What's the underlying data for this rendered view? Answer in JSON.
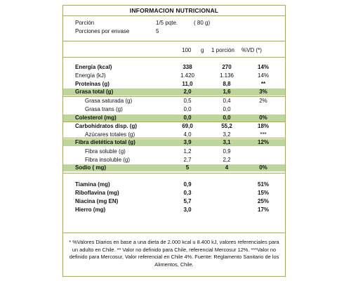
{
  "title": "INFORMACION NUTRICIONAL",
  "serving": {
    "portion_label": "Porción",
    "portion_value": "1/5 pqte.",
    "portion_grams": "(    80   g)",
    "servings_label": "Porciones por envase",
    "servings_value": "5"
  },
  "header": {
    "per100": "100",
    "unit": "g",
    "per_portion": "1 porción",
    "vd": "%VD (*)"
  },
  "rows": [
    {
      "label": "Energía (kcal)",
      "v100": "338",
      "vp": "270",
      "vd": "14%"
    },
    {
      "label": "Energía (kJ)",
      "v100": "1.420",
      "vp": "1.136",
      "vd": "14%"
    },
    {
      "label": "Proteínas (g)",
      "v100": "11,0",
      "vp": "8,8",
      "vd": "**"
    },
    {
      "label": "Grasa total (g)",
      "v100": "2,0",
      "vp": "1,6",
      "vd": "3%"
    },
    {
      "label": "Grasa saturada (g)",
      "v100": "0,5",
      "vp": "0,4",
      "vd": "2%"
    },
    {
      "label": "Grasa trans (g)",
      "v100": "0,0",
      "vp": "0,0",
      "vd": ""
    },
    {
      "label": "Colesterol (mg)",
      "v100": "0,0",
      "vp": "0,0",
      "vd": "0%"
    },
    {
      "label": "Carbohidratos disp. (g)",
      "v100": "69,0",
      "vp": "55,2",
      "vd": "18%"
    },
    {
      "label": "Azúcares totales (g)",
      "v100": "4,0",
      "vp": "3,2",
      "vd": "***"
    },
    {
      "label": "Fibra dietética total (g)",
      "v100": "3,9",
      "vp": "3,1",
      "vd": "12%"
    },
    {
      "label": "Fibra soluble (g)",
      "v100": "1,2",
      "vp": "0,9",
      "vd": ""
    },
    {
      "label": "Fibra insoluble (g)",
      "v100": "2,7",
      "vp": "2,2",
      "vd": ""
    },
    {
      "label": "Sodio ( mg)",
      "v100": "5",
      "vp": "4",
      "vd": "0%"
    },
    {
      "label": "Tiamina (mg)",
      "v100": "0,9",
      "vp": "",
      "vd": "51%"
    },
    {
      "label": "Riboflavina (mg)",
      "v100": "0,3",
      "vp": "",
      "vd": "15%"
    },
    {
      "label": "Niacina  (mg EN)",
      "v100": "5,7",
      "vp": "",
      "vd": "25%"
    },
    {
      "label": "Hierro  (mg)",
      "v100": "3,0",
      "vp": "",
      "vd": "17%"
    }
  ],
  "footnote": "* %Valores Diarios en base a una dieta de 2.000 kcal u 8.400 kJ, valores referenciales para un adulto en Chile. ** Valor no definido para Chile, referencial Mercosur 12%. ***Valor no definido para Mercosur, Valor referencial en Chile 4%. Fuente: Reglamento Sanitario de los Alimentos, Chile.",
  "colors": {
    "border": "#a8b43a",
    "band": "#bcd69b"
  }
}
